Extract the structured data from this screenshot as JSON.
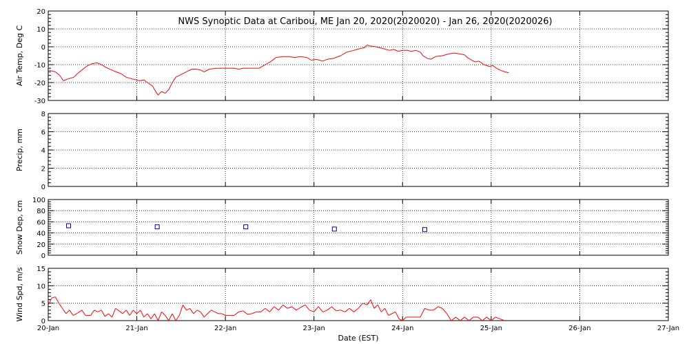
{
  "chart_data": {
    "type": "line",
    "title": "NWS Synoptic Data at Caribou, ME   Jan 20, 2020(2020020) - Jan 26, 2020(2020026)",
    "xlabel": "Date (EST)",
    "x_ticks": [
      "20-Jan",
      "21-Jan",
      "22-Jan",
      "23-Jan",
      "24-Jan",
      "25-Jan",
      "26-Jan",
      "27-Jan"
    ],
    "xlim_days": [
      0,
      7
    ],
    "grid": true,
    "panels": [
      {
        "id": "air-temp",
        "ylabel": "Air Temp, Deg C",
        "ylim": [
          -30,
          20
        ],
        "yticks": [
          -30,
          -20,
          -10,
          0,
          10,
          20
        ],
        "color": "#ff0000",
        "series": [
          {
            "type": "line",
            "color": "#ff0000",
            "points": [
              [
                0.0,
                -13
              ],
              [
                0.08,
                -14
              ],
              [
                0.13,
                -16
              ],
              [
                0.17,
                -19
              ],
              [
                0.22,
                -18
              ],
              [
                0.29,
                -17
              ],
              [
                0.33,
                -15
              ],
              [
                0.38,
                -13
              ],
              [
                0.43,
                -11
              ],
              [
                0.49,
                -9.5
              ],
              [
                0.55,
                -9
              ],
              [
                0.6,
                -10
              ],
              [
                0.67,
                -12
              ],
              [
                0.74,
                -13.5
              ],
              [
                0.82,
                -15
              ],
              [
                0.88,
                -17
              ],
              [
                0.95,
                -18
              ],
              [
                1.03,
                -19
              ],
              [
                1.08,
                -18.5
              ],
              [
                1.12,
                -20
              ],
              [
                1.18,
                -22
              ],
              [
                1.2,
                -24
              ],
              [
                1.24,
                -27
              ],
              [
                1.28,
                -25
              ],
              [
                1.32,
                -26
              ],
              [
                1.36,
                -24
              ],
              [
                1.4,
                -20
              ],
              [
                1.44,
                -17
              ],
              [
                1.5,
                -15.5
              ],
              [
                1.56,
                -14
              ],
              [
                1.62,
                -12.5
              ],
              [
                1.67,
                -12.5
              ],
              [
                1.72,
                -13
              ],
              [
                1.76,
                -14
              ],
              [
                1.82,
                -12.5
              ],
              [
                1.9,
                -12
              ],
              [
                2.0,
                -12
              ],
              [
                2.1,
                -12
              ],
              [
                2.15,
                -12.5
              ],
              [
                2.2,
                -12
              ],
              [
                2.3,
                -12
              ],
              [
                2.38,
                -12
              ],
              [
                2.45,
                -10
              ],
              [
                2.52,
                -8
              ],
              [
                2.57,
                -6
              ],
              [
                2.65,
                -5.5
              ],
              [
                2.72,
                -5.5
              ],
              [
                2.78,
                -6
              ],
              [
                2.85,
                -5.5
              ],
              [
                2.92,
                -6
              ],
              [
                2.97,
                -7.5
              ],
              [
                3.02,
                -7
              ],
              [
                3.06,
                -7.5
              ],
              [
                3.1,
                -8
              ],
              [
                3.15,
                -7
              ],
              [
                3.22,
                -6.5
              ],
              [
                3.3,
                -5
              ],
              [
                3.37,
                -3
              ],
              [
                3.45,
                -2
              ],
              [
                3.52,
                -1
              ],
              [
                3.57,
                -0.5
              ],
              [
                3.6,
                1
              ],
              [
                3.63,
                0.5
              ],
              [
                3.7,
                0
              ],
              [
                3.78,
                -1
              ],
              [
                3.85,
                -2
              ],
              [
                3.9,
                -1.5
              ],
              [
                3.95,
                -2.5
              ],
              [
                4.0,
                -2
              ],
              [
                4.05,
                -2
              ],
              [
                4.1,
                -2.5
              ],
              [
                4.15,
                -2
              ],
              [
                4.2,
                -3
              ],
              [
                4.23,
                -5
              ],
              [
                4.28,
                -6.5
              ],
              [
                4.32,
                -7
              ],
              [
                4.37,
                -5.5
              ],
              [
                4.45,
                -5
              ],
              [
                4.52,
                -4
              ],
              [
                4.58,
                -3.5
              ],
              [
                4.65,
                -4
              ],
              [
                4.7,
                -4.5
              ],
              [
                4.73,
                -6
              ],
              [
                4.78,
                -7.5
              ],
              [
                4.82,
                -8.5
              ],
              [
                4.86,
                -8
              ],
              [
                4.92,
                -10
              ],
              [
                4.98,
                -11
              ],
              [
                5.02,
                -10.5
              ],
              [
                5.06,
                -12
              ],
              [
                5.1,
                -13
              ],
              [
                5.15,
                -14
              ],
              [
                5.2,
                -14.5
              ]
            ]
          }
        ]
      },
      {
        "id": "precip",
        "ylabel": "Precip, mm",
        "ylim": [
          0,
          8
        ],
        "yticks": [
          0,
          2,
          4,
          6,
          8
        ],
        "series": []
      },
      {
        "id": "snow-depth",
        "ylabel": "Snow Dep, cm",
        "ylim": [
          0,
          100
        ],
        "yticks": [
          0,
          20,
          40,
          60,
          80,
          100
        ],
        "series": [
          {
            "type": "marker",
            "color": "#00007f",
            "points": [
              [
                0.23,
                53
              ],
              [
                1.23,
                51
              ],
              [
                2.23,
                51
              ],
              [
                3.23,
                47
              ],
              [
                4.25,
                46
              ]
            ]
          }
        ]
      },
      {
        "id": "wind-speed",
        "ylabel": "Wind Spd, m/s",
        "ylim": [
          0,
          15
        ],
        "yticks": [
          0,
          5,
          10,
          15
        ],
        "series": [
          {
            "type": "line",
            "color": "#ff0000",
            "points": [
              [
                0.0,
                4.5
              ],
              [
                0.04,
                6.5
              ],
              [
                0.08,
                6.8
              ],
              [
                0.12,
                5
              ],
              [
                0.16,
                3.5
              ],
              [
                0.2,
                2
              ],
              [
                0.24,
                3
              ],
              [
                0.28,
                1.5
              ],
              [
                0.32,
                2
              ],
              [
                0.38,
                3
              ],
              [
                0.42,
                1.5
              ],
              [
                0.48,
                1.5
              ],
              [
                0.52,
                3
              ],
              [
                0.56,
                2.5
              ],
              [
                0.6,
                3
              ],
              [
                0.64,
                1.2
              ],
              [
                0.68,
                2
              ],
              [
                0.72,
                1
              ],
              [
                0.76,
                3.5
              ],
              [
                0.8,
                2.8
              ],
              [
                0.84,
                2
              ],
              [
                0.88,
                3
              ],
              [
                0.92,
                1.5
              ],
              [
                0.96,
                3
              ],
              [
                1.0,
                2
              ],
              [
                1.04,
                3
              ],
              [
                1.08,
                1
              ],
              [
                1.12,
                2
              ],
              [
                1.16,
                0.5
              ],
              [
                1.2,
                2
              ],
              [
                1.24,
                0
              ],
              [
                1.28,
                2.5
              ],
              [
                1.32,
                1.5
              ],
              [
                1.36,
                0
              ],
              [
                1.4,
                2
              ],
              [
                1.44,
                0
              ],
              [
                1.48,
                1.5
              ],
              [
                1.52,
                4.5
              ],
              [
                1.56,
                3
              ],
              [
                1.6,
                3.5
              ],
              [
                1.64,
                2
              ],
              [
                1.68,
                3
              ],
              [
                1.72,
                2.5
              ],
              [
                1.76,
                1
              ],
              [
                1.8,
                2
              ],
              [
                1.84,
                3
              ],
              [
                1.88,
                2.5
              ],
              [
                1.92,
                2
              ],
              [
                1.96,
                2
              ],
              [
                2.0,
                1.5
              ],
              [
                2.05,
                1.5
              ],
              [
                2.1,
                1.5
              ],
              [
                2.15,
                2.5
              ],
              [
                2.2,
                2.8
              ],
              [
                2.25,
                1.8
              ],
              [
                2.3,
                2
              ],
              [
                2.35,
                2.5
              ],
              [
                2.4,
                2.5
              ],
              [
                2.45,
                3.5
              ],
              [
                2.5,
                2.5
              ],
              [
                2.55,
                4
              ],
              [
                2.6,
                3
              ],
              [
                2.65,
                4.5
              ],
              [
                2.7,
                3.5
              ],
              [
                2.75,
                4
              ],
              [
                2.8,
                3
              ],
              [
                2.85,
                3.8
              ],
              [
                2.9,
                4.5
              ],
              [
                2.95,
                3
              ],
              [
                3.0,
                2.5
              ],
              [
                3.05,
                4
              ],
              [
                3.1,
                2.5
              ],
              [
                3.15,
                3
              ],
              [
                3.2,
                4
              ],
              [
                3.25,
                2.8
              ],
              [
                3.3,
                3
              ],
              [
                3.35,
                2.5
              ],
              [
                3.4,
                3.5
              ],
              [
                3.45,
                2.5
              ],
              [
                3.5,
                3.5
              ],
              [
                3.55,
                5
              ],
              [
                3.6,
                4.5
              ],
              [
                3.64,
                6
              ],
              [
                3.68,
                3.5
              ],
              [
                3.72,
                4.5
              ],
              [
                3.76,
                2.5
              ],
              [
                3.8,
                3.5
              ],
              [
                3.84,
                1.5
              ],
              [
                3.88,
                2
              ],
              [
                3.92,
                2.5
              ],
              [
                3.96,
                0.5
              ],
              [
                4.0,
                0
              ],
              [
                4.04,
                1
              ],
              [
                4.1,
                1
              ],
              [
                4.15,
                1
              ],
              [
                4.2,
                1
              ],
              [
                4.25,
                3.5
              ],
              [
                4.3,
                3
              ],
              [
                4.35,
                3
              ],
              [
                4.4,
                4
              ],
              [
                4.45,
                3.5
              ],
              [
                4.5,
                2
              ],
              [
                4.55,
                0
              ],
              [
                4.6,
                1
              ],
              [
                4.65,
                0
              ],
              [
                4.7,
                1
              ],
              [
                4.75,
                0
              ],
              [
                4.8,
                1
              ],
              [
                4.85,
                1
              ],
              [
                4.9,
                0
              ],
              [
                4.95,
                1
              ],
              [
                5.0,
                0
              ],
              [
                5.05,
                1
              ],
              [
                5.1,
                0.5
              ],
              [
                5.15,
                0
              ]
            ]
          }
        ]
      }
    ]
  }
}
